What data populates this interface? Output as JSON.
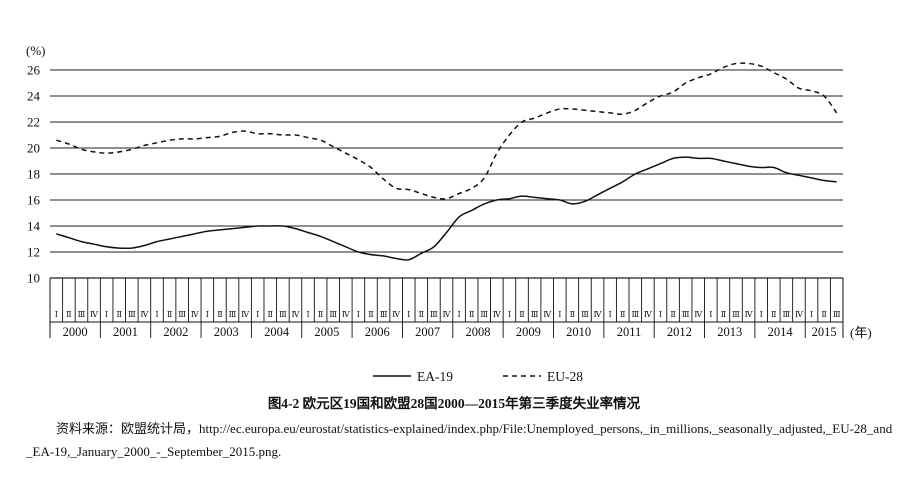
{
  "chart_data": {
    "type": "line",
    "title": "",
    "ylabel": "(%)",
    "xlabel": "(年)",
    "ylim": [
      10,
      26
    ],
    "yticks": [
      10,
      12,
      14,
      16,
      18,
      20,
      22,
      24,
      26
    ],
    "grid": true,
    "legend_position": "bottom-center",
    "quarter_labels": [
      "Ⅰ",
      "Ⅱ",
      "Ⅲ",
      "Ⅳ"
    ],
    "years": [
      "2000",
      "2001",
      "2002",
      "2003",
      "2004",
      "2005",
      "2006",
      "2007",
      "2008",
      "2009",
      "2010",
      "2011",
      "2012",
      "2013",
      "2014",
      "2015"
    ],
    "x": [
      "2000Q1",
      "2000Q2",
      "2000Q3",
      "2000Q4",
      "2001Q1",
      "2001Q2",
      "2001Q3",
      "2001Q4",
      "2002Q1",
      "2002Q2",
      "2002Q3",
      "2002Q4",
      "2003Q1",
      "2003Q2",
      "2003Q3",
      "2003Q4",
      "2004Q1",
      "2004Q2",
      "2004Q3",
      "2004Q4",
      "2005Q1",
      "2005Q2",
      "2005Q3",
      "2005Q4",
      "2006Q1",
      "2006Q2",
      "2006Q3",
      "2006Q4",
      "2007Q1",
      "2007Q2",
      "2007Q3",
      "2007Q4",
      "2008Q1",
      "2008Q2",
      "2008Q3",
      "2008Q4",
      "2009Q1",
      "2009Q2",
      "2009Q3",
      "2009Q4",
      "2010Q1",
      "2010Q2",
      "2010Q3",
      "2010Q4",
      "2011Q1",
      "2011Q2",
      "2011Q3",
      "2011Q4",
      "2012Q1",
      "2012Q2",
      "2012Q3",
      "2012Q4",
      "2013Q1",
      "2013Q2",
      "2013Q3",
      "2013Q4",
      "2014Q1",
      "2014Q2",
      "2014Q3",
      "2014Q4",
      "2015Q1",
      "2015Q2",
      "2015Q3"
    ],
    "series": [
      {
        "name": "EA-19",
        "values": [
          13.4,
          13.1,
          12.8,
          12.6,
          12.4,
          12.3,
          12.3,
          12.5,
          12.8,
          13.0,
          13.2,
          13.4,
          13.6,
          13.7,
          13.8,
          13.9,
          14.0,
          14.0,
          14.0,
          13.8,
          13.5,
          13.2,
          12.8,
          12.4,
          12.0,
          11.8,
          11.7,
          11.5,
          11.4,
          11.9,
          12.4,
          13.5,
          14.7,
          15.2,
          15.7,
          16.0,
          16.1,
          16.3,
          16.2,
          16.1,
          16.0,
          15.7,
          15.9,
          16.4,
          16.9,
          17.4,
          18.0,
          18.4,
          18.8,
          19.2,
          19.3,
          19.2,
          19.2,
          19.0,
          18.8,
          18.6,
          18.5,
          18.5,
          18.1,
          17.9,
          17.7,
          17.5,
          17.4
        ]
      },
      {
        "name": "EU-28",
        "values": [
          20.6,
          20.3,
          19.9,
          19.7,
          19.6,
          19.7,
          19.9,
          20.2,
          20.4,
          20.6,
          20.7,
          20.7,
          20.8,
          20.9,
          21.2,
          21.3,
          21.1,
          21.1,
          21.0,
          21.0,
          20.8,
          20.6,
          20.1,
          19.6,
          19.1,
          18.5,
          17.6,
          16.9,
          16.8,
          16.5,
          16.2,
          16.1,
          16.5,
          16.9,
          17.7,
          19.6,
          21.0,
          22.0,
          22.3,
          22.7,
          23.0,
          23.0,
          22.9,
          22.8,
          22.7,
          22.6,
          22.9,
          23.5,
          24.0,
          24.3,
          25.0,
          25.4,
          25.7,
          26.2,
          26.5,
          26.5,
          26.3,
          25.8,
          25.3,
          24.6,
          24.4,
          24.0,
          22.7
        ]
      }
    ]
  },
  "caption": "图4-2 欧元区19国和欧盟28国2000—2015年第三季度失业率情况",
  "source": "资料来源：欧盟统计局，http://ec.europa.eu/eurostat/statistics-explained/index.php/File:Unemployed_persons,_in_millions,_seasonally_adjusted,_EU-28_and_EA-19,_January_2000_-_September_2015.png."
}
